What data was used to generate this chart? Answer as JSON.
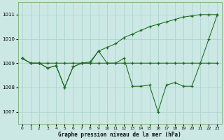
{
  "line_flat_x": [
    0,
    1,
    2,
    3,
    4,
    5,
    6,
    7,
    8,
    9,
    10,
    11,
    12,
    13,
    14,
    15,
    16,
    17,
    18,
    19,
    20,
    21,
    22,
    23
  ],
  "line_flat_y": [
    1009.2,
    1009.0,
    1009.0,
    1009.0,
    1009.0,
    1009.0,
    1009.0,
    1009.0,
    1009.0,
    1009.0,
    1009.0,
    1009.0,
    1009.0,
    1009.0,
    1009.0,
    1009.0,
    1009.0,
    1009.0,
    1009.0,
    1009.0,
    1009.0,
    1009.0,
    1009.0,
    1009.0
  ],
  "line_wave_x": [
    0,
    1,
    2,
    3,
    4,
    5,
    6,
    7,
    8,
    9,
    10,
    11,
    12,
    13,
    14,
    15,
    16,
    17,
    18,
    19,
    20,
    21,
    22,
    23
  ],
  "line_wave_y": [
    1009.2,
    1009.0,
    1009.0,
    1008.8,
    1008.9,
    1008.0,
    1008.85,
    1009.0,
    1009.0,
    1009.5,
    1009.0,
    1009.0,
    1009.2,
    1008.05,
    1008.05,
    1008.1,
    1007.0,
    1008.1,
    1008.2,
    1008.05,
    1008.05,
    1009.0,
    1010.0,
    1011.0
  ],
  "line_rise_x": [
    0,
    1,
    2,
    3,
    4,
    5,
    6,
    7,
    8,
    9,
    10,
    11,
    12,
    13,
    14,
    15,
    16,
    17,
    18,
    19,
    20,
    21,
    22,
    23
  ],
  "line_rise_y": [
    1009.2,
    1009.0,
    1009.0,
    1008.8,
    1008.9,
    1008.0,
    1008.85,
    1009.0,
    1009.05,
    1009.5,
    1009.65,
    1009.8,
    1010.05,
    1010.2,
    1010.35,
    1010.5,
    1010.6,
    1010.7,
    1010.8,
    1010.9,
    1010.95,
    1011.0,
    1011.0,
    1011.0
  ],
  "line_color": "#1a6b1a",
  "bg_color": "#cce8e4",
  "grid_color": "#a8d0cc",
  "xlabel": "Graphe pression niveau de la mer (hPa)",
  "ylim": [
    1006.5,
    1011.5
  ],
  "xlim": [
    -0.5,
    23.5
  ],
  "yticks": [
    1007,
    1008,
    1009,
    1010,
    1011
  ],
  "xticks": [
    0,
    1,
    2,
    3,
    4,
    5,
    6,
    7,
    8,
    9,
    10,
    11,
    12,
    13,
    14,
    15,
    16,
    17,
    18,
    19,
    20,
    21,
    22,
    23
  ]
}
